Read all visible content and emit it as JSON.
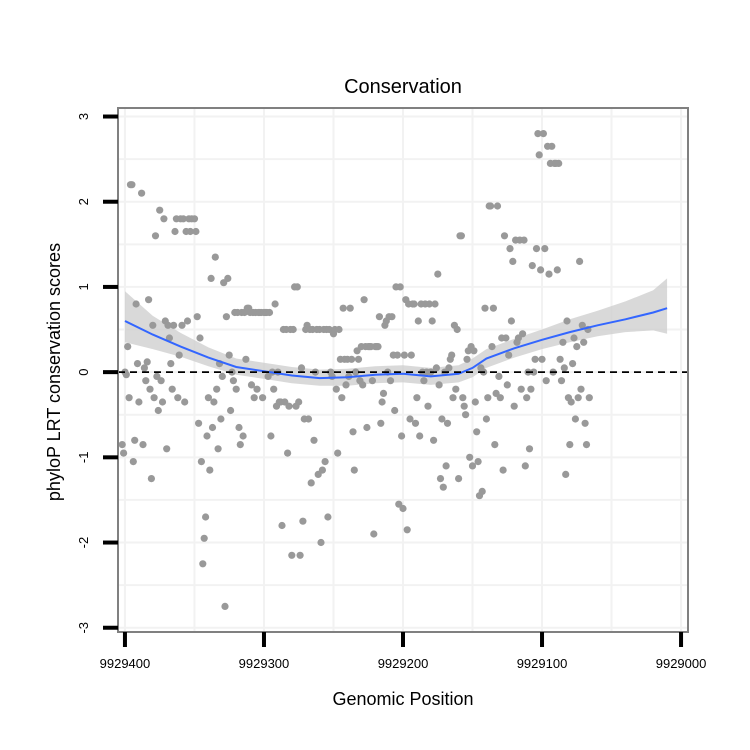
{
  "chart_data": {
    "type": "scatter",
    "title": "Conservation",
    "xlabel": "Genomic Position",
    "ylabel": "phyloP LRT conservation scores",
    "xlim": [
      9929405,
      9928995
    ],
    "ylim": [
      -3.05,
      3.1
    ],
    "x_reversed": true,
    "xticks": [
      9929400,
      9929300,
      9929200,
      9929100,
      9929000
    ],
    "xtick_labels": [
      "9929400",
      "9929300",
      "9929200",
      "9929100",
      "9929000"
    ],
    "yticks": [
      -3,
      -2,
      -1,
      0,
      1,
      2,
      3
    ],
    "ytick_labels": [
      "-3",
      "-2",
      "-1",
      "0",
      "1",
      "2",
      "3"
    ],
    "reference_line": {
      "y": 0,
      "style": "dashed"
    },
    "colors": {
      "points": "#999999",
      "smooth": "#3366FF",
      "ribbon": "#cccccc",
      "border": "#808080",
      "grid": "#f2f2f2"
    },
    "smooth": {
      "x": [
        9929400,
        9929380,
        9929360,
        9929340,
        9929320,
        9929300,
        9929280,
        9929260,
        9929240,
        9929220,
        9929200,
        9929180,
        9929160,
        9929150,
        9929140,
        9929120,
        9929100,
        9929080,
        9929060,
        9929040,
        9929020,
        9929010
      ],
      "y": [
        0.6,
        0.44,
        0.3,
        0.17,
        0.06,
        0.01,
        -0.04,
        -0.07,
        -0.06,
        -0.03,
        -0.02,
        -0.05,
        -0.02,
        0.05,
        0.16,
        0.28,
        0.38,
        0.47,
        0.55,
        0.62,
        0.7,
        0.75
      ],
      "lower": [
        0.35,
        0.27,
        0.18,
        0.07,
        -0.03,
        -0.08,
        -0.13,
        -0.16,
        -0.16,
        -0.13,
        -0.12,
        -0.15,
        -0.12,
        -0.06,
        0.05,
        0.17,
        0.27,
        0.35,
        0.42,
        0.47,
        0.49,
        0.45
      ],
      "upper": [
        0.95,
        0.66,
        0.46,
        0.29,
        0.16,
        0.11,
        0.06,
        0.03,
        0.04,
        0.07,
        0.08,
        0.05,
        0.08,
        0.16,
        0.27,
        0.39,
        0.5,
        0.62,
        0.72,
        0.83,
        0.96,
        1.1
      ]
    },
    "points": [
      [
        9929402,
        -0.85
      ],
      [
        9929401,
        -0.95
      ],
      [
        9929400,
        0.0
      ],
      [
        9929399,
        -0.03
      ],
      [
        9929398,
        0.3
      ],
      [
        9929397,
        -0.3
      ],
      [
        9929396,
        2.2
      ],
      [
        9929395,
        2.2
      ],
      [
        9929394,
        -1.05
      ],
      [
        9929393,
        -0.8
      ],
      [
        9929392,
        0.8
      ],
      [
        9929391,
        0.1
      ],
      [
        9929390,
        -0.35
      ],
      [
        9929388,
        2.1
      ],
      [
        9929387,
        -0.85
      ],
      [
        9929386,
        0.05
      ],
      [
        9929385,
        -0.1
      ],
      [
        9929384,
        0.12
      ],
      [
        9929383,
        0.85
      ],
      [
        9929382,
        -0.2
      ],
      [
        9929381,
        -1.25
      ],
      [
        9929380,
        0.55
      ],
      [
        9929379,
        -0.3
      ],
      [
        9929378,
        1.6
      ],
      [
        9929377,
        -0.05
      ],
      [
        9929376,
        -0.45
      ],
      [
        9929375,
        1.9
      ],
      [
        9929374,
        -0.1
      ],
      [
        9929373,
        -0.35
      ],
      [
        9929372,
        1.8
      ],
      [
        9929371,
        0.6
      ],
      [
        9929370,
        -0.9
      ],
      [
        9929369,
        0.55
      ],
      [
        9929368,
        0.4
      ],
      [
        9929367,
        0.1
      ],
      [
        9929366,
        -0.2
      ],
      [
        9929365,
        0.55
      ],
      [
        9929364,
        1.65
      ],
      [
        9929363,
        1.8
      ],
      [
        9929362,
        -0.3
      ],
      [
        9929361,
        0.2
      ],
      [
        9929360,
        1.8
      ],
      [
        9929359,
        0.55
      ],
      [
        9929358,
        1.8
      ],
      [
        9929357,
        -0.35
      ],
      [
        9929356,
        1.65
      ],
      [
        9929355,
        0.6
      ],
      [
        9929354,
        1.8
      ],
      [
        9929353,
        1.65
      ],
      [
        9929352,
        1.8
      ],
      [
        9929350,
        1.8
      ],
      [
        9929349,
        1.65
      ],
      [
        9929348,
        0.65
      ],
      [
        9929347,
        -0.6
      ],
      [
        9929346,
        0.4
      ],
      [
        9929345,
        -1.05
      ],
      [
        9929344,
        -2.25
      ],
      [
        9929343,
        -1.95
      ],
      [
        9929342,
        -1.7
      ],
      [
        9929341,
        -0.75
      ],
      [
        9929340,
        -0.3
      ],
      [
        9929339,
        -1.15
      ],
      [
        9929338,
        1.1
      ],
      [
        9929337,
        -0.65
      ],
      [
        9929336,
        -0.35
      ],
      [
        9929335,
        1.35
      ],
      [
        9929334,
        -0.2
      ],
      [
        9929333,
        -0.9
      ],
      [
        9929332,
        0.1
      ],
      [
        9929331,
        -0.55
      ],
      [
        9929330,
        -0.05
      ],
      [
        9929329,
        1.05
      ],
      [
        9929328,
        -2.75
      ],
      [
        9929327,
        0.65
      ],
      [
        9929326,
        1.1
      ],
      [
        9929325,
        0.2
      ],
      [
        9929324,
        -0.45
      ],
      [
        9929323,
        0.0
      ],
      [
        9929322,
        -0.1
      ],
      [
        9929321,
        0.7
      ],
      [
        9929320,
        -0.2
      ],
      [
        9929319,
        0.7
      ],
      [
        9929318,
        -0.65
      ],
      [
        9929317,
        -0.85
      ],
      [
        9929316,
        0.7
      ],
      [
        9929315,
        -0.75
      ],
      [
        9929314,
        0.7
      ],
      [
        9929313,
        0.15
      ],
      [
        9929312,
        0.75
      ],
      [
        9929311,
        0.75
      ],
      [
        9929310,
        0.7
      ],
      [
        9929309,
        -0.15
      ],
      [
        9929308,
        0.7
      ],
      [
        9929307,
        -0.3
      ],
      [
        9929306,
        0.7
      ],
      [
        9929305,
        -0.2
      ],
      [
        9929304,
        0.7
      ],
      [
        9929303,
        0.7
      ],
      [
        9929302,
        0.7
      ],
      [
        9929301,
        -0.3
      ],
      [
        9929300,
        0.7
      ],
      [
        9929299,
        0.7
      ],
      [
        9929298,
        0.7
      ],
      [
        9929297,
        -0.05
      ],
      [
        9929296,
        0.7
      ],
      [
        9929295,
        -0.75
      ],
      [
        9929294,
        0.0
      ],
      [
        9929293,
        -0.2
      ],
      [
        9929292,
        0.8
      ],
      [
        9929291,
        -0.4
      ],
      [
        9929290,
        0.0
      ],
      [
        9929289,
        -0.35
      ],
      [
        9929288,
        -0.35
      ],
      [
        9929287,
        -1.8
      ],
      [
        9929286,
        0.5
      ],
      [
        9929285,
        -0.35
      ],
      [
        9929284,
        0.5
      ],
      [
        9929283,
        -0.95
      ],
      [
        9929282,
        -0.4
      ],
      [
        9929281,
        0.5
      ],
      [
        9929280,
        -2.15
      ],
      [
        9929279,
        0.5
      ],
      [
        9929278,
        1.0
      ],
      [
        9929277,
        -0.4
      ],
      [
        9929276,
        1.0
      ],
      [
        9929275,
        -0.35
      ],
      [
        9929274,
        -2.15
      ],
      [
        9929273,
        0.05
      ],
      [
        9929272,
        -1.75
      ],
      [
        9929271,
        -0.55
      ],
      [
        9929270,
        0.5
      ],
      [
        9929269,
        0.55
      ],
      [
        9929268,
        -0.55
      ],
      [
        9929267,
        0.5
      ],
      [
        9929266,
        -1.3
      ],
      [
        9929265,
        0.5
      ],
      [
        9929264,
        -0.8
      ],
      [
        9929263,
        0.0
      ],
      [
        9929262,
        0.5
      ],
      [
        9929261,
        -1.2
      ],
      [
        9929260,
        0.5
      ],
      [
        9929259,
        -2.0
      ],
      [
        9929258,
        -1.15
      ],
      [
        9929257,
        0.5
      ],
      [
        9929256,
        -1.05
      ],
      [
        9929255,
        0.5
      ],
      [
        9929254,
        -1.7
      ],
      [
        9929253,
        0.5
      ],
      [
        9929252,
        0.0
      ],
      [
        9929251,
        -0.05
      ],
      [
        9929250,
        0.45
      ],
      [
        9929249,
        0.5
      ],
      [
        9929248,
        -0.2
      ],
      [
        9929247,
        -0.95
      ],
      [
        9929246,
        0.5
      ],
      [
        9929245,
        0.15
      ],
      [
        9929244,
        -0.3
      ],
      [
        9929243,
        0.75
      ],
      [
        9929242,
        0.15
      ],
      [
        9929241,
        -0.15
      ],
      [
        9929240,
        0.15
      ],
      [
        9929239,
        -0.05
      ],
      [
        9929238,
        0.75
      ],
      [
        9929237,
        0.15
      ],
      [
        9929236,
        -0.7
      ],
      [
        9929235,
        -1.15
      ],
      [
        9929234,
        0.0
      ],
      [
        9929233,
        0.25
      ],
      [
        9929232,
        0.15
      ],
      [
        9929231,
        -0.1
      ],
      [
        9929230,
        0.3
      ],
      [
        9929229,
        -0.15
      ],
      [
        9929228,
        0.85
      ],
      [
        9929227,
        0.3
      ],
      [
        9929226,
        -0.65
      ],
      [
        9929225,
        0.3
      ],
      [
        9929224,
        0.3
      ],
      [
        9929223,
        0.3
      ],
      [
        9929222,
        -0.1
      ],
      [
        9929221,
        -1.9
      ],
      [
        9929220,
        0.3
      ],
      [
        9929219,
        0.3
      ],
      [
        9929218,
        0.3
      ],
      [
        9929217,
        0.65
      ],
      [
        9929216,
        -0.6
      ],
      [
        9929215,
        -0.35
      ],
      [
        9929214,
        -0.25
      ],
      [
        9929213,
        0.55
      ],
      [
        9929212,
        0.6
      ],
      [
        9929211,
        0.0
      ],
      [
        9929210,
        0.65
      ],
      [
        9929209,
        -0.1
      ],
      [
        9929208,
        0.65
      ],
      [
        9929207,
        0.2
      ],
      [
        9929206,
        -0.45
      ],
      [
        9929205,
        1.0
      ],
      [
        9929204,
        0.2
      ],
      [
        9929203,
        -1.55
      ],
      [
        9929202,
        1.0
      ],
      [
        9929201,
        -0.75
      ],
      [
        9929200,
        -1.6
      ],
      [
        9929199,
        0.2
      ],
      [
        9929198,
        0.85
      ],
      [
        9929197,
        -1.85
      ],
      [
        9929196,
        0.8
      ],
      [
        9929195,
        -0.55
      ],
      [
        9929194,
        0.2
      ],
      [
        9929193,
        0.8
      ],
      [
        9929192,
        0.8
      ],
      [
        9929191,
        -0.6
      ],
      [
        9929190,
        -0.3
      ],
      [
        9929189,
        0.6
      ],
      [
        9929188,
        -0.75
      ],
      [
        9929187,
        0.8
      ],
      [
        9929186,
        0.0
      ],
      [
        9929185,
        -0.1
      ],
      [
        9929184,
        0.8
      ],
      [
        9929183,
        0.0
      ],
      [
        9929182,
        -0.4
      ],
      [
        9929181,
        0.8
      ],
      [
        9929180,
        0.0
      ],
      [
        9929179,
        0.6
      ],
      [
        9929178,
        -0.8
      ],
      [
        9929177,
        0.8
      ],
      [
        9929176,
        0.05
      ],
      [
        9929175,
        1.15
      ],
      [
        9929174,
        -0.15
      ],
      [
        9929173,
        -1.25
      ],
      [
        9929172,
        -0.55
      ],
      [
        9929171,
        -1.35
      ],
      [
        9929170,
        0.0
      ],
      [
        9929169,
        -1.1
      ],
      [
        9929168,
        -0.6
      ],
      [
        9929167,
        0.05
      ],
      [
        9929166,
        0.15
      ],
      [
        9929165,
        0.2
      ],
      [
        9929164,
        -0.3
      ],
      [
        9929163,
        0.55
      ],
      [
        9929162,
        -0.2
      ],
      [
        9929161,
        0.5
      ],
      [
        9929160,
        -1.25
      ],
      [
        9929159,
        1.6
      ],
      [
        9929158,
        1.6
      ],
      [
        9929157,
        -0.3
      ],
      [
        9929156,
        -0.4
      ],
      [
        9929155,
        -0.5
      ],
      [
        9929154,
        0.15
      ],
      [
        9929153,
        0.25
      ],
      [
        9929152,
        -1.0
      ],
      [
        9929151,
        0.3
      ],
      [
        9929150,
        -1.1
      ],
      [
        9929149,
        0.25
      ],
      [
        9929148,
        -0.35
      ],
      [
        9929147,
        -0.7
      ],
      [
        9929146,
        -1.05
      ],
      [
        9929145,
        -1.45
      ],
      [
        9929144,
        0.05
      ],
      [
        9929143,
        -1.4
      ],
      [
        9929142,
        0.0
      ],
      [
        9929141,
        0.75
      ],
      [
        9929140,
        -0.55
      ],
      [
        9929139,
        -0.3
      ],
      [
        9929138,
        1.95
      ],
      [
        9929137,
        1.95
      ],
      [
        9929136,
        0.3
      ],
      [
        9929135,
        0.75
      ],
      [
        9929134,
        -0.85
      ],
      [
        9929133,
        -0.25
      ],
      [
        9929132,
        1.95
      ],
      [
        9929131,
        -0.05
      ],
      [
        9929130,
        -0.3
      ],
      [
        9929129,
        0.4
      ],
      [
        9929128,
        -1.15
      ],
      [
        9929127,
        1.6
      ],
      [
        9929126,
        0.4
      ],
      [
        9929125,
        -0.15
      ],
      [
        9929124,
        0.2
      ],
      [
        9929123,
        1.45
      ],
      [
        9929122,
        0.6
      ],
      [
        9929121,
        1.3
      ],
      [
        9929120,
        -0.4
      ],
      [
        9929119,
        1.55
      ],
      [
        9929118,
        0.35
      ],
      [
        9929117,
        0.4
      ],
      [
        9929116,
        1.55
      ],
      [
        9929115,
        -0.2
      ],
      [
        9929114,
        0.45
      ],
      [
        9929113,
        1.55
      ],
      [
        9929112,
        -1.1
      ],
      [
        9929111,
        -0.3
      ],
      [
        9929110,
        0.0
      ],
      [
        9929109,
        -0.9
      ],
      [
        9929108,
        -0.2
      ],
      [
        9929107,
        1.25
      ],
      [
        9929106,
        0.0
      ],
      [
        9929105,
        0.15
      ],
      [
        9929104,
        1.45
      ],
      [
        9929103,
        2.8
      ],
      [
        9929102,
        2.55
      ],
      [
        9929101,
        1.2
      ],
      [
        9929100,
        0.15
      ],
      [
        9929099,
        2.8
      ],
      [
        9929098,
        1.45
      ],
      [
        9929097,
        -0.1
      ],
      [
        9929096,
        2.65
      ],
      [
        9929095,
        1.15
      ],
      [
        9929094,
        2.45
      ],
      [
        9929093,
        2.65
      ],
      [
        9929092,
        0.0
      ],
      [
        9929091,
        2.45
      ],
      [
        9929090,
        2.45
      ],
      [
        9929089,
        1.2
      ],
      [
        9929088,
        2.45
      ],
      [
        9929087,
        0.15
      ],
      [
        9929086,
        -0.1
      ],
      [
        9929085,
        0.35
      ],
      [
        9929084,
        0.05
      ],
      [
        9929083,
        -1.2
      ],
      [
        9929082,
        0.6
      ],
      [
        9929081,
        -0.3
      ],
      [
        9929080,
        -0.85
      ],
      [
        9929079,
        -0.35
      ],
      [
        9929078,
        0.1
      ],
      [
        9929077,
        0.4
      ],
      [
        9929076,
        -0.55
      ],
      [
        9929075,
        0.3
      ],
      [
        9929074,
        -0.3
      ],
      [
        9929073,
        1.3
      ],
      [
        9929072,
        -0.2
      ],
      [
        9929071,
        0.55
      ],
      [
        9929070,
        0.35
      ],
      [
        9929069,
        -0.6
      ],
      [
        9929068,
        -0.85
      ],
      [
        9929067,
        0.5
      ],
      [
        9929066,
        -0.3
      ]
    ]
  }
}
